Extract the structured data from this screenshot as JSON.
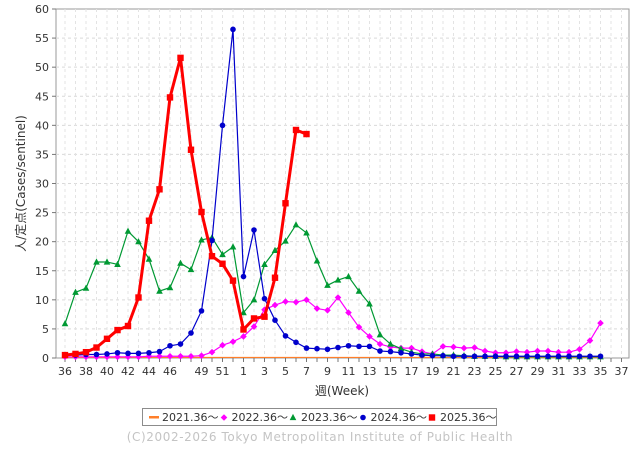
{
  "chart_data": {
    "type": "line",
    "xlabel": "週(Week)",
    "ylabel": "人/定点(Cases/sentinel)",
    "ylim": [
      0,
      60
    ],
    "yticks": [
      0,
      5,
      10,
      15,
      20,
      25,
      30,
      35,
      40,
      45,
      50,
      55,
      60
    ],
    "xtick_labels": [
      "36",
      "37",
      "38",
      "39",
      "40",
      "41",
      "42",
      "43",
      "44",
      "45",
      "46",
      "47",
      "48",
      "49",
      "50",
      "51",
      "52",
      "1",
      "2",
      "3",
      "4",
      "5",
      "6",
      "7",
      "8",
      "9",
      "10",
      "11",
      "12",
      "13",
      "14",
      "15",
      "16",
      "17",
      "18",
      "19",
      "20",
      "21",
      "22",
      "23",
      "24",
      "25",
      "26",
      "27",
      "28",
      "29",
      "30",
      "31",
      "32",
      "33",
      "34",
      "35",
      "36",
      "37"
    ],
    "xtick_shown": [
      "36",
      "38",
      "40",
      "42",
      "44",
      "46",
      "49",
      "51",
      "1",
      "3",
      "5",
      "7",
      "9",
      "11",
      "13",
      "15",
      "17",
      "19",
      "21",
      "23",
      "25",
      "27",
      "29",
      "31",
      "33",
      "35",
      "37"
    ],
    "grid": true,
    "legend_position": "bottom",
    "series": [
      {
        "name": "2021.36～",
        "color": "#ff7f2a",
        "marker": "line",
        "values": [
          0.1,
          0.1,
          0.1,
          0.1,
          0.1,
          0.1,
          0.1,
          0.1,
          0.1,
          0.1,
          0.1,
          0.1,
          0.1,
          0.1,
          0.1,
          0.1,
          0.1,
          0.1,
          0.1,
          0.1,
          0.1,
          0.1,
          0.1,
          0.1,
          0.1,
          0.1,
          0.1,
          0.1,
          0.1,
          0.1,
          0.1,
          0.1,
          0.1,
          0.1,
          0.1,
          0.1,
          0.1,
          0.1,
          0.1,
          0.1,
          0.1,
          0.1,
          0.1,
          0.1,
          0.1,
          0.1,
          0.1,
          0.1,
          0.1,
          0.1,
          0.1,
          0.1
        ]
      },
      {
        "name": "2022.36～",
        "color": "#ff00ff",
        "marker": "diamond",
        "values": [
          0.2,
          0.2,
          0.2,
          0.2,
          0.2,
          0.2,
          0.2,
          0.2,
          0.3,
          0.3,
          0.3,
          0.3,
          0.3,
          0.4,
          1.0,
          2.2,
          2.8,
          3.7,
          5.4,
          8.3,
          9.1,
          9.7,
          9.6,
          10.0,
          8.5,
          8.2,
          10.4,
          7.8,
          5.3,
          3.7,
          2.4,
          1.9,
          1.7,
          1.7,
          1.1,
          0.7,
          2.0,
          1.9,
          1.7,
          1.8,
          1.2,
          0.9,
          0.9,
          1.1,
          1.0,
          1.2,
          1.2,
          1.0,
          1.0,
          1.5,
          3.0,
          6.0
        ]
      },
      {
        "name": "2023.36～",
        "color": "#009933",
        "marker": "triangle",
        "values": [
          5.9,
          11.3,
          12.0,
          16.5,
          16.5,
          16.1,
          21.8,
          20.0,
          17.0,
          11.5,
          12.1,
          16.3,
          15.2,
          20.3,
          20.7,
          17.8,
          19.1,
          7.8,
          10.0,
          16.1,
          18.5,
          20.1,
          22.9,
          21.5,
          16.7,
          12.5,
          13.4,
          14.0,
          11.5,
          9.3,
          4.0,
          2.4,
          1.6,
          1.0,
          0.7,
          0.7,
          0.5,
          0.5,
          0.4,
          0.3,
          0.3,
          0.3,
          0.2,
          0.2,
          0.2,
          0.2,
          0.2,
          0.2,
          0.2,
          0.2,
          0.2,
          0.2
        ]
      },
      {
        "name": "2024.36～",
        "color": "#0000cc",
        "marker": "circle",
        "values": [
          0.5,
          0.5,
          0.6,
          0.6,
          0.7,
          0.9,
          0.8,
          0.8,
          0.9,
          1.1,
          2.1,
          2.4,
          4.3,
          8.1,
          20.2,
          40.0,
          56.5,
          14.0,
          22.0,
          10.2,
          6.5,
          3.8,
          2.7,
          1.7,
          1.6,
          1.5,
          1.8,
          2.1,
          2.0,
          2.0,
          1.2,
          1.1,
          0.9,
          0.7,
          0.5,
          0.4,
          0.4,
          0.3,
          0.3,
          0.3,
          0.3,
          0.3,
          0.3,
          0.3,
          0.3,
          0.3,
          0.3,
          0.3,
          0.3,
          0.3,
          0.3,
          0.3
        ]
      },
      {
        "name": "2025.36～",
        "color": "#ff0000",
        "marker": "square",
        "values": [
          0.5,
          0.7,
          1.0,
          1.8,
          3.3,
          4.8,
          5.5,
          10.4,
          23.6,
          29.0,
          44.8,
          51.6,
          35.8,
          25.1,
          17.5,
          16.2,
          13.3,
          4.9,
          6.8,
          7.1,
          13.8,
          26.6,
          39.2,
          38.5
        ]
      }
    ]
  },
  "copyright": "(C)2002-2026 Tokyo Metropolitan Institute of Public Health"
}
